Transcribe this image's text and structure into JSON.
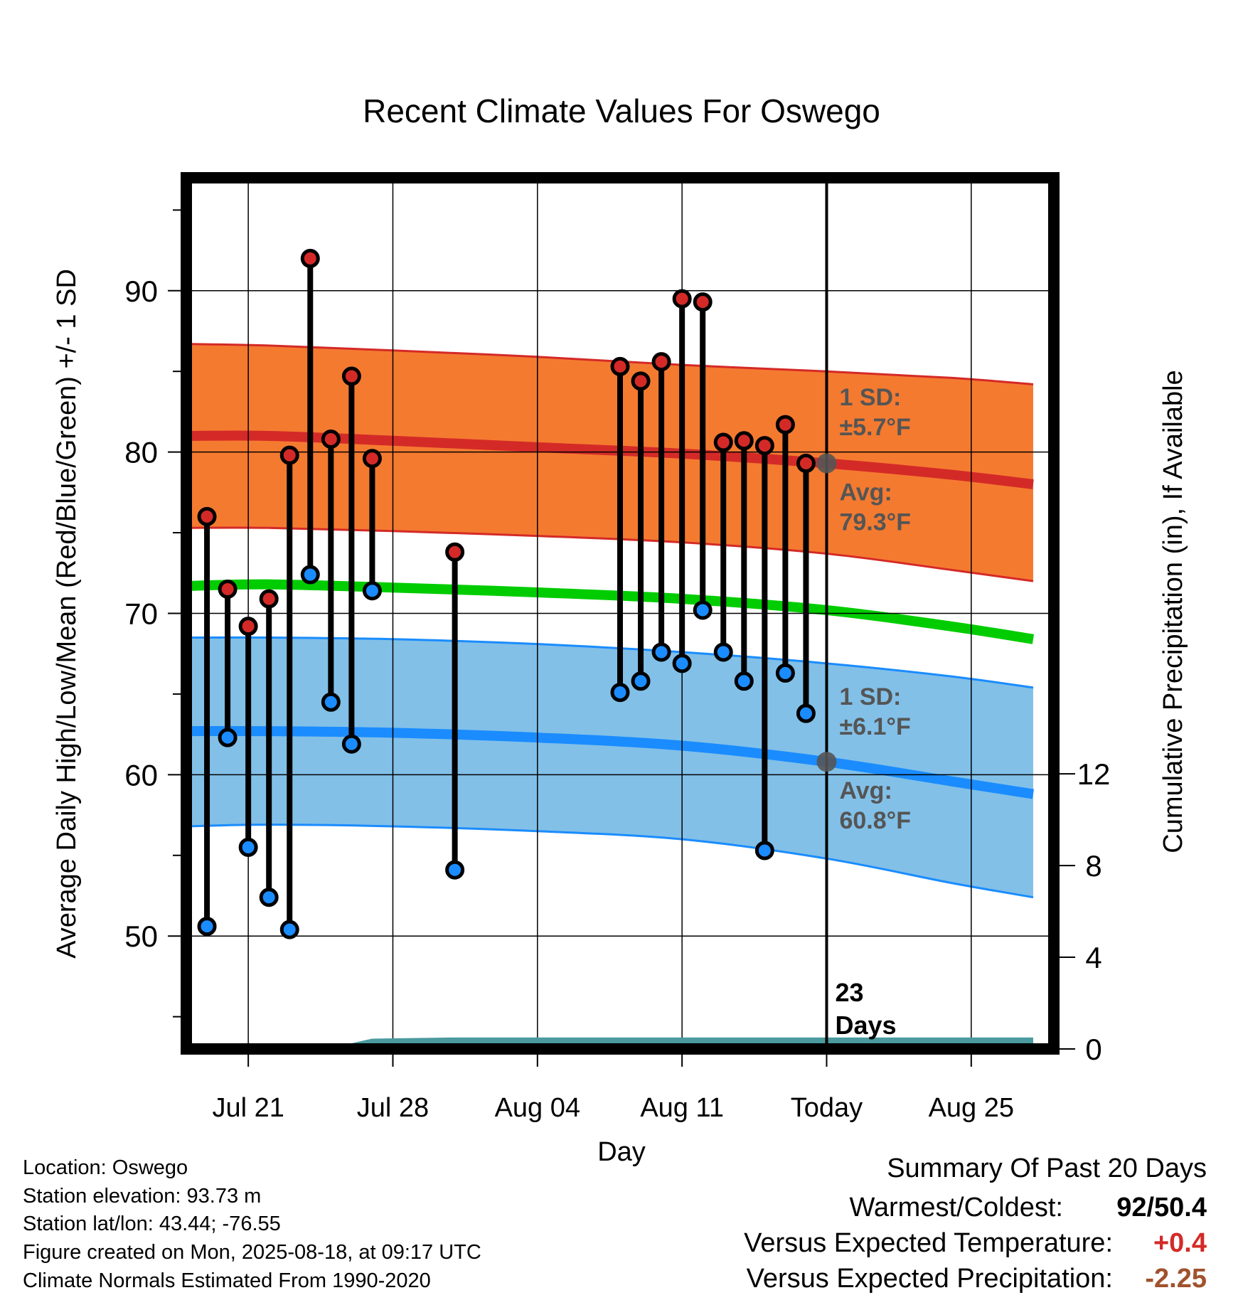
{
  "chart_data": {
    "type": "line",
    "title": "Recent Climate Values For Oswego",
    "xlabel": "Day",
    "ylabel": "Average Daily High/Low/Mean (Red/Blue/Green) +/- 1 SD",
    "y2label": "Cumulative Precipitation (in), If Available",
    "ylim": [
      43,
      97
    ],
    "y2lim": [
      0,
      38
    ],
    "yticks": [
      50,
      60,
      70,
      80,
      90
    ],
    "y2ticks": [
      0,
      4,
      8,
      12
    ],
    "x_range_dates": [
      "2025-07-18",
      "2025-08-29"
    ],
    "x_ticks": [
      {
        "date": "2025-07-21",
        "label": "Jul 21"
      },
      {
        "date": "2025-07-28",
        "label": "Jul 28"
      },
      {
        "date": "2025-08-04",
        "label": "Aug 04"
      },
      {
        "date": "2025-08-11",
        "label": "Aug 11"
      },
      {
        "date": "2025-08-18",
        "label": "Today"
      },
      {
        "date": "2025-08-25",
        "label": "Aug 25"
      }
    ],
    "normal_dates": [
      "2025-07-18",
      "2025-07-22",
      "2025-07-28",
      "2025-08-04",
      "2025-08-11",
      "2025-08-18",
      "2025-08-24",
      "2025-08-28"
    ],
    "normal_high": [
      81.0,
      81.0,
      80.7,
      80.3,
      79.9,
      79.3,
      78.6,
      78.0
    ],
    "normal_high_sd_upper": [
      86.7,
      86.6,
      86.3,
      85.9,
      85.4,
      85.0,
      84.6,
      84.2
    ],
    "normal_high_sd_lower": [
      75.3,
      75.3,
      75.1,
      74.8,
      74.4,
      73.7,
      72.7,
      72.0
    ],
    "normal_mean": [
      71.7,
      71.8,
      71.6,
      71.3,
      70.9,
      70.2,
      69.2,
      68.4
    ],
    "normal_low": [
      62.7,
      62.7,
      62.6,
      62.3,
      61.8,
      60.8,
      59.6,
      58.8
    ],
    "normal_low_sd_upper": [
      68.5,
      68.5,
      68.4,
      68.1,
      67.6,
      66.9,
      66.1,
      65.4
    ],
    "normal_low_sd_lower": [
      56.8,
      56.9,
      56.8,
      56.5,
      56.0,
      54.8,
      53.3,
      52.4
    ],
    "observed": {
      "dates": [
        "2025-07-19",
        "2025-07-20",
        "2025-07-21",
        "2025-07-22",
        "2025-07-23",
        "2025-07-24",
        "2025-07-25",
        "2025-07-26",
        "2025-07-27",
        "2025-07-31",
        "2025-08-08",
        "2025-08-09",
        "2025-08-10",
        "2025-08-11",
        "2025-08-12",
        "2025-08-13",
        "2025-08-14",
        "2025-08-15",
        "2025-08-16",
        "2025-08-17"
      ],
      "high": [
        76.0,
        71.5,
        69.2,
        70.9,
        79.8,
        92.0,
        80.8,
        84.7,
        79.6,
        73.8,
        85.3,
        84.4,
        85.6,
        89.5,
        89.3,
        80.6,
        80.7,
        80.4,
        81.7,
        79.3
      ],
      "low": [
        50.6,
        62.3,
        55.5,
        52.4,
        50.4,
        72.4,
        64.5,
        61.9,
        71.4,
        54.1,
        65.1,
        65.8,
        67.6,
        66.9,
        70.2,
        67.6,
        65.8,
        55.3,
        66.3,
        63.8
      ]
    },
    "precip_cumulative": {
      "dates": [
        "2025-07-18",
        "2025-07-20",
        "2025-07-25",
        "2025-07-27",
        "2025-07-31",
        "2025-08-28"
      ],
      "values": [
        0.0,
        0.05,
        0.05,
        0.45,
        0.5,
        0.5
      ]
    },
    "today_marker": {
      "date": "2025-08-18",
      "label": "23\nDays"
    },
    "annotations": {
      "high_sd": "1 SD:\n±5.7°F",
      "high_avg": "Avg:\n79.3°F",
      "low_sd": "1 SD:\n±6.1°F",
      "low_avg": "Avg:\n60.8°F"
    },
    "colors": {
      "high_band": "#f47a30",
      "high_line": "#d42a27",
      "mean_line": "#00cc00",
      "low_band": "#82c0e8",
      "low_line": "#1a8cff",
      "precip": "#4a9a9e",
      "high_dot": "#d42a27",
      "low_dot": "#1a8cff",
      "annotation": "#555555"
    },
    "grid": true
  },
  "footer": {
    "location": "Location: Oswego",
    "elevation": "Station elevation: 93.73 m",
    "latlon": "Station lat/lon: 43.44; -76.55",
    "created": "Figure created on Mon, 2025-08-18, at 09:17 UTC",
    "normals": "Climate Normals Estimated From 1990-2020"
  },
  "summary": {
    "title": "Summary Of Past 20 Days",
    "warm_cold_label": "Warmest/Coldest:",
    "warm_cold_value": "92/50.4",
    "temp_label": "Versus Expected Temperature:",
    "temp_value": "+0.4",
    "temp_color": "#d42a27",
    "precip_label": "Versus Expected Precipitation:",
    "precip_value": "-2.25",
    "precip_color": "#a0522d"
  }
}
